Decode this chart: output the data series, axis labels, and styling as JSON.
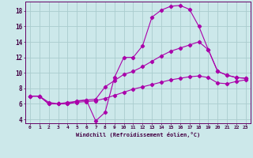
{
  "xlabel": "Windchill (Refroidissement éolien,°C)",
  "bg_color": "#cce8ea",
  "grid_color": "#aaccce",
  "line_color": "#aa00aa",
  "spine_color": "#660066",
  "tick_color": "#440044",
  "xlim": [
    -0.5,
    23.5
  ],
  "ylim": [
    3.5,
    19.2
  ],
  "xticks": [
    0,
    1,
    2,
    3,
    4,
    5,
    6,
    7,
    8,
    9,
    10,
    11,
    12,
    13,
    14,
    15,
    16,
    17,
    18,
    19,
    20,
    21,
    22,
    23
  ],
  "yticks": [
    4,
    6,
    8,
    10,
    12,
    14,
    16,
    18
  ],
  "line1_x": [
    0,
    1,
    2,
    3,
    4,
    5,
    6,
    7,
    8,
    9,
    10,
    11,
    12,
    13,
    14,
    15,
    16,
    17,
    18,
    19,
    20,
    21,
    22,
    23
  ],
  "line1_y": [
    7.0,
    7.0,
    6.0,
    6.0,
    6.0,
    6.4,
    6.5,
    3.8,
    4.9,
    9.4,
    12.0,
    12.0,
    13.5,
    17.2,
    18.1,
    18.6,
    18.7,
    18.2,
    16.0,
    13.0,
    10.2,
    9.7,
    9.4,
    9.3
  ],
  "line2_x": [
    0,
    1,
    2,
    3,
    4,
    5,
    6,
    7,
    8,
    9,
    10,
    11,
    12,
    13,
    14,
    15,
    16,
    17,
    18,
    19,
    20,
    21,
    22,
    23
  ],
  "line2_y": [
    7.0,
    7.0,
    6.2,
    6.0,
    6.2,
    6.3,
    6.5,
    6.6,
    8.2,
    9.0,
    9.8,
    10.2,
    10.8,
    11.5,
    12.2,
    12.8,
    13.2,
    13.6,
    14.0,
    13.0,
    10.2,
    9.7,
    9.4,
    9.3
  ],
  "line3_x": [
    0,
    1,
    2,
    3,
    4,
    5,
    6,
    7,
    8,
    9,
    10,
    11,
    12,
    13,
    14,
    15,
    16,
    17,
    18,
    19,
    20,
    21,
    22,
    23
  ],
  "line3_y": [
    7.0,
    7.0,
    6.0,
    6.0,
    6.0,
    6.2,
    6.3,
    6.4,
    6.7,
    7.1,
    7.5,
    7.9,
    8.2,
    8.5,
    8.8,
    9.1,
    9.3,
    9.5,
    9.6,
    9.4,
    8.7,
    8.6,
    8.9,
    9.1
  ]
}
